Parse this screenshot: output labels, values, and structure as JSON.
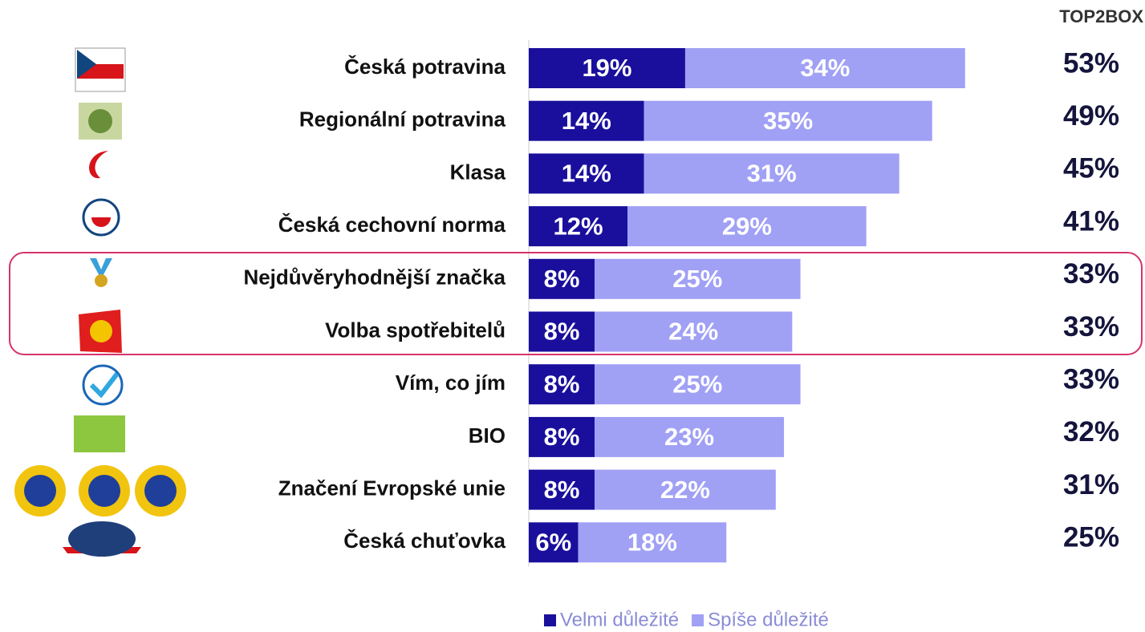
{
  "chart_data": {
    "type": "stacked_barh",
    "categories": [
      "Česká potravina",
      "Regionální potravina",
      "Klasa",
      "Česká cechovní norma",
      "Nejdůvěryhodnější značka",
      "Volba spotřebitelů",
      "Vím, co jím",
      "BIO",
      "Značení Evropské unie",
      "Česká chuťovka"
    ],
    "series": [
      {
        "name": "Velmi důležité",
        "color": "#1a0f9c",
        "values": [
          19,
          14,
          14,
          12,
          8,
          8,
          8,
          8,
          8,
          6
        ],
        "value_labels": [
          "19%",
          "14%",
          "14%",
          "12%",
          "8%",
          "8%",
          "8%",
          "8%",
          "8%",
          "6%"
        ]
      },
      {
        "name": "Spíše důležité",
        "color": "#a0a0f5",
        "values": [
          34,
          35,
          31,
          29,
          25,
          24,
          25,
          23,
          22,
          18
        ],
        "value_labels": [
          "34%",
          "35%",
          "31%",
          "29%",
          "25%",
          "24%",
          "25%",
          "23%",
          "22%",
          "18%"
        ]
      }
    ],
    "top2box": {
      "title": "TOP2BOX",
      "values": [
        53,
        49,
        45,
        41,
        33,
        33,
        33,
        32,
        31,
        25
      ],
      "value_labels": [
        "53%",
        "49%",
        "45%",
        "41%",
        "33%",
        "33%",
        "33%",
        "32%",
        "31%",
        "25%"
      ]
    },
    "legend": "bottom"
  }
}
